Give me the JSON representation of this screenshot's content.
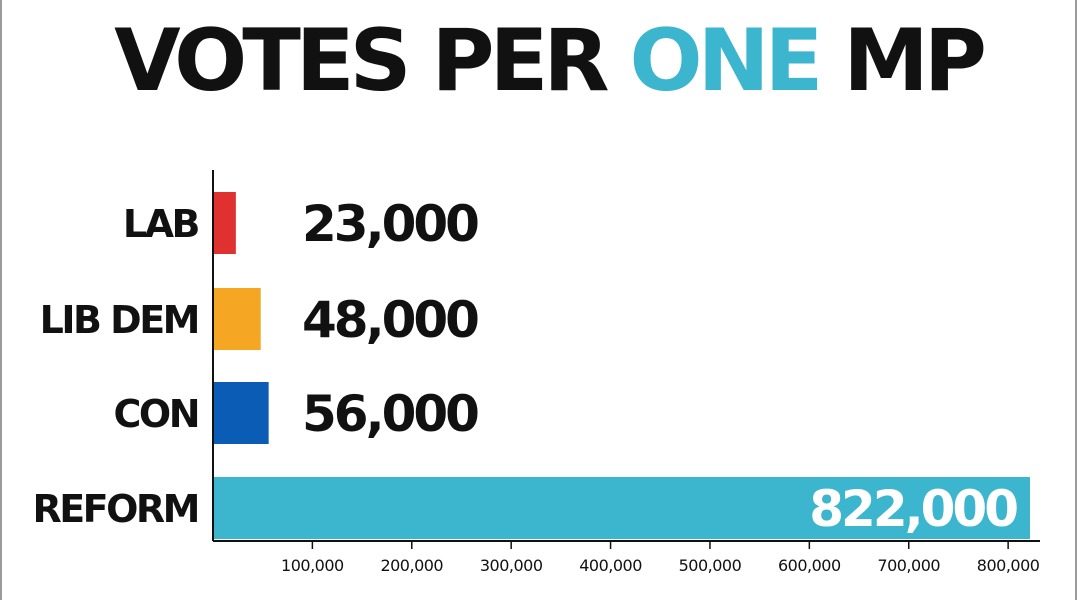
{
  "chart_data": {
    "type": "bar",
    "orientation": "horizontal",
    "title": {
      "part1": "VOTES PER ",
      "part2": "ONE",
      "part3": " MP"
    },
    "categories": [
      "LAB",
      "LIB DEM",
      "CON",
      "REFORM"
    ],
    "values": [
      23000,
      48000,
      56000,
      822000
    ],
    "value_labels": [
      "23,000",
      "48,000",
      "56,000",
      "822,000"
    ],
    "colors": [
      "#e03131",
      "#f5a623",
      "#0b5cb5",
      "#3cb6cf"
    ],
    "x_ticks": [
      100000,
      200000,
      300000,
      400000,
      500000,
      600000,
      700000,
      800000
    ],
    "x_tick_labels": [
      "100,000",
      "200,000",
      "300,000",
      "400,000",
      "500,000",
      "600,000",
      "700,000",
      "800,000"
    ],
    "xlim": [
      0,
      830000
    ],
    "xlabel": "",
    "ylabel": "",
    "grid": false,
    "legend": "none",
    "title_accent_color": "#3cb6cf"
  }
}
